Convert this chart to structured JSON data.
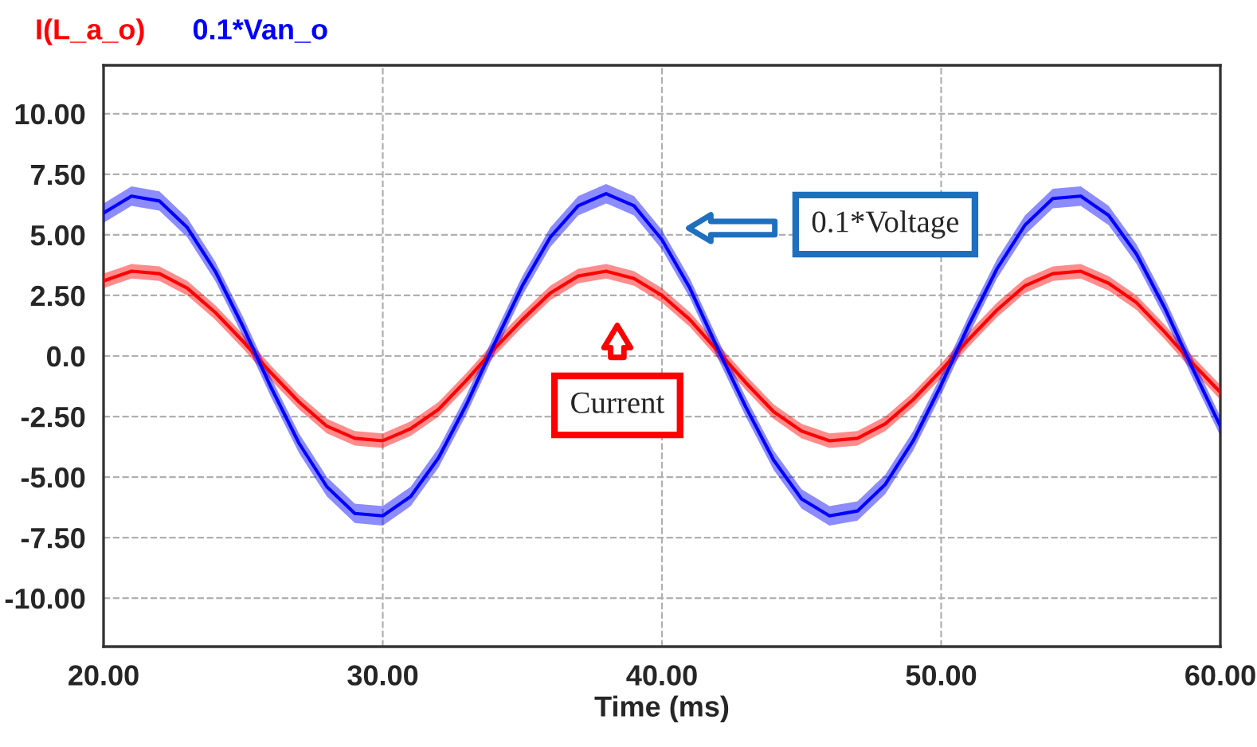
{
  "chart_data": {
    "type": "line",
    "xlabel": "Time (ms)",
    "x": [
      20,
      21,
      22,
      23,
      24,
      25,
      26,
      27,
      28,
      29,
      30,
      31,
      32,
      33,
      34,
      35,
      36,
      37,
      38,
      39,
      40,
      41,
      42,
      43,
      44,
      45,
      46,
      47,
      48,
      49,
      50,
      51,
      52,
      53,
      54,
      55,
      56,
      57,
      58,
      59,
      60
    ],
    "series": [
      {
        "name": "I(L_a_o)",
        "color": "#ff0000",
        "values": [
          3.1,
          3.5,
          3.4,
          2.8,
          1.8,
          0.6,
          -0.7,
          -1.9,
          -2.9,
          -3.4,
          -3.5,
          -3.0,
          -2.2,
          -1.0,
          0.3,
          1.5,
          2.6,
          3.3,
          3.5,
          3.2,
          2.5,
          1.5,
          0.2,
          -1.1,
          -2.3,
          -3.1,
          -3.5,
          -3.4,
          -2.8,
          -1.8,
          -0.6,
          0.7,
          1.9,
          2.9,
          3.4,
          3.5,
          3.0,
          2.2,
          1.0,
          -0.3,
          -1.5
        ],
        "upper": [
          3.4,
          3.8,
          3.7,
          3.1,
          2.1,
          0.9,
          -0.4,
          -1.6,
          -2.6,
          -3.1,
          -3.2,
          -2.7,
          -1.9,
          -0.7,
          0.6,
          1.8,
          2.9,
          3.6,
          3.8,
          3.5,
          2.8,
          1.8,
          0.5,
          -0.8,
          -2.0,
          -2.8,
          -3.2,
          -3.1,
          -2.5,
          -1.5,
          -0.3,
          1.0,
          2.2,
          3.2,
          3.7,
          3.8,
          3.3,
          2.5,
          1.3,
          0.0,
          -1.2
        ],
        "lower": [
          2.8,
          3.2,
          3.1,
          2.5,
          1.5,
          0.3,
          -1.0,
          -2.2,
          -3.2,
          -3.7,
          -3.8,
          -3.3,
          -2.5,
          -1.3,
          0.0,
          1.2,
          2.3,
          3.0,
          3.2,
          2.9,
          2.2,
          1.2,
          -0.1,
          -1.4,
          -2.6,
          -3.4,
          -3.8,
          -3.7,
          -3.1,
          -2.1,
          -0.9,
          0.4,
          1.6,
          2.6,
          3.1,
          3.2,
          2.7,
          1.9,
          0.7,
          -0.6,
          -1.8
        ]
      },
      {
        "name": "0.1*Van_o",
        "color": "#0000ff",
        "values": [
          5.9,
          6.6,
          6.4,
          5.3,
          3.5,
          1.2,
          -1.3,
          -3.6,
          -5.4,
          -6.5,
          -6.6,
          -5.8,
          -4.2,
          -2.0,
          0.5,
          2.9,
          4.9,
          6.2,
          6.7,
          6.2,
          4.8,
          2.8,
          0.3,
          -2.1,
          -4.3,
          -5.9,
          -6.6,
          -6.4,
          -5.3,
          -3.5,
          -1.2,
          1.3,
          3.6,
          5.4,
          6.5,
          6.6,
          5.8,
          4.2,
          2.0,
          -0.5,
          -2.9
        ],
        "upper": [
          6.3,
          7.0,
          6.8,
          5.7,
          3.9,
          1.6,
          -0.9,
          -3.2,
          -5.0,
          -6.1,
          -6.2,
          -5.4,
          -3.8,
          -1.6,
          0.9,
          3.3,
          5.3,
          6.6,
          7.1,
          6.6,
          5.2,
          3.2,
          0.7,
          -1.7,
          -3.9,
          -5.5,
          -6.2,
          -6.0,
          -4.9,
          -3.1,
          -0.8,
          1.7,
          4.0,
          5.8,
          6.9,
          7.0,
          6.2,
          4.6,
          2.4,
          -0.1,
          -2.5
        ],
        "lower": [
          5.5,
          6.2,
          6.0,
          4.9,
          3.1,
          0.8,
          -1.7,
          -4.0,
          -5.8,
          -6.9,
          -7.0,
          -6.2,
          -4.6,
          -2.4,
          0.1,
          2.5,
          4.5,
          5.8,
          6.3,
          5.8,
          4.4,
          2.4,
          -0.1,
          -2.5,
          -4.7,
          -6.3,
          -7.0,
          -6.8,
          -5.7,
          -3.9,
          -1.6,
          0.9,
          3.2,
          5.0,
          6.1,
          6.2,
          5.4,
          3.8,
          1.6,
          -0.9,
          -3.3
        ]
      }
    ],
    "xlim": [
      20,
      60
    ],
    "xticks": [
      {
        "value": 20,
        "label": "20.00"
      },
      {
        "value": 30,
        "label": "30.00"
      },
      {
        "value": 40,
        "label": "40.00"
      },
      {
        "value": 50,
        "label": "50.00"
      },
      {
        "value": 60,
        "label": "60.00"
      }
    ],
    "ylim": [
      -12,
      12
    ],
    "yticks": [
      {
        "value": -10,
        "label": "-10.00"
      },
      {
        "value": -7.5,
        "label": "-7.50"
      },
      {
        "value": -5,
        "label": "-5.00"
      },
      {
        "value": -2.5,
        "label": "-2.50"
      },
      {
        "value": 0,
        "label": "0.0"
      },
      {
        "value": 2.5,
        "label": "2.50"
      },
      {
        "value": 5,
        "label": "5.00"
      },
      {
        "value": 7.5,
        "label": "7.50"
      },
      {
        "value": 10,
        "label": "10.00"
      }
    ],
    "grid": true,
    "legend": "top left",
    "marker": "none",
    "line_style": "solid",
    "annotations": [
      "0.1*Voltage",
      "Current"
    ]
  }
}
